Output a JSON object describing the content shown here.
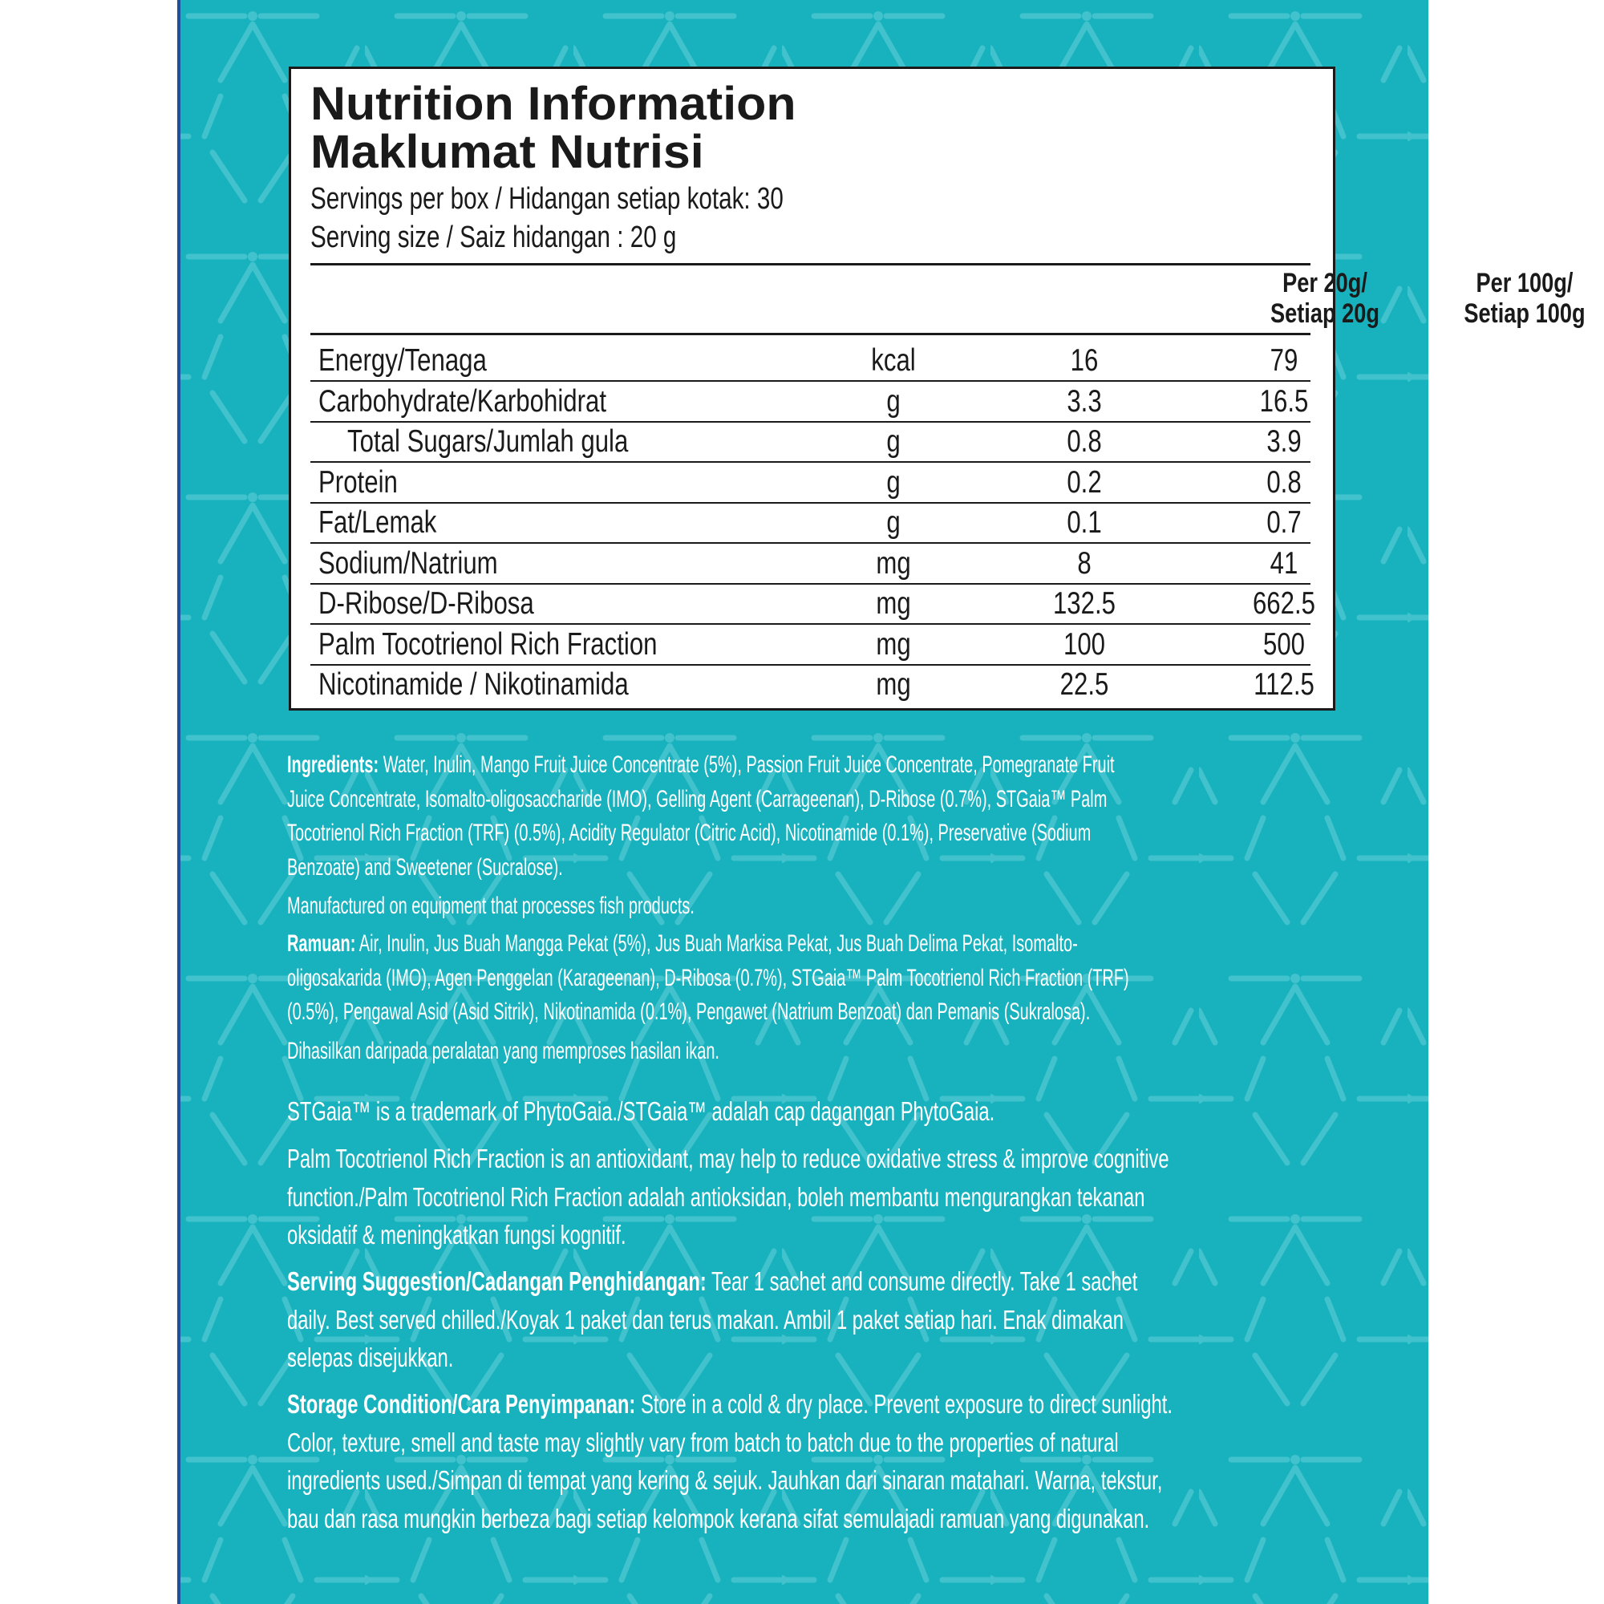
{
  "colors": {
    "background": "#17b2be",
    "pattern": "#4cc6d0",
    "panel_edge": "#1d4f9a",
    "label_border": "#1a1a1a"
  },
  "label": {
    "title_en": "Nutrition Information",
    "title_ms": "Maklumat Nutrisi",
    "servings_per_box": "Servings per box / Hidangan setiap kotak: 30",
    "serving_size": "Serving size / Saiz hidangan : 20 g",
    "col_per20": [
      "Per 20g/",
      "Setiap 20g"
    ],
    "col_per100": [
      "Per 100g/",
      "Setiap 100g"
    ],
    "rows": [
      {
        "name": "Energy/Tenaga",
        "unit": "kcal",
        "per20": "16",
        "per100": "79"
      },
      {
        "name": "Carbohydrate/Karbohidrat",
        "unit": "g",
        "per20": "3.3",
        "per100": "16.5"
      },
      {
        "name": "Total Sugars/Jumlah gula",
        "unit": "g",
        "per20": "0.8",
        "per100": "3.9"
      },
      {
        "name": "Protein",
        "unit": "g",
        "per20": "0.2",
        "per100": "0.8"
      },
      {
        "name": "Fat/Lemak",
        "unit": "g",
        "per20": "0.1",
        "per100": "0.7"
      },
      {
        "name": "Sodium/Natrium",
        "unit": "mg",
        "per20": "8",
        "per100": "41"
      },
      {
        "name": "D-Ribose/D-Ribosa",
        "unit": "mg",
        "per20": "132.5",
        "per100": "662.5"
      },
      {
        "name": "Palm Tocotrienol Rich Fraction",
        "unit": "mg",
        "per20": "100",
        "per100": "500"
      },
      {
        "name": "Nicotinamide / Nikotinamida",
        "unit": "mg",
        "per20": "22.5",
        "per100": "112.5"
      }
    ]
  },
  "ingredients": {
    "label": "Ingredients:",
    "lines": [
      " Water, Inulin, Mango Fruit Juice Concentrate (5%), Passion Fruit Juice Concentrate, Pomegranate Fruit",
      "Juice Concentrate, Isomalto-oligosaccharide (IMO), Gelling Agent (Carrageenan), D-Ribose (0.7%), STGaia™ Palm",
      "Tocotrienol Rich Fraction (TRF) (0.5%), Acidity Regulator (Citric Acid), Nicotinamide (0.1%), Preservative (Sodium",
      "Benzoate) and Sweetener (Sucralose)."
    ],
    "allergen": "Manufactured on equipment that processes fish products."
  },
  "ramuan": {
    "label": "Ramuan:",
    "lines": [
      " Air, Inulin, Jus Buah Mangga Pekat (5%), Jus Buah Markisa Pekat, Jus Buah Delima Pekat, Isomalto-",
      "oligosakarida (IMO), Agen Penggelan (Karageenan), D-Ribosa (0.7%), STGaia™ Palm Tocotrienol Rich Fraction (TRF)",
      "(0.5%), Pengawal Asid (Asid Sitrik), Nikotinamida (0.1%), Pengawet (Natrium Benzoat) dan Pemanis (Sukralosa)."
    ],
    "allergen": "Dihasilkan daripada peralatan yang memproses hasilan ikan."
  },
  "trademark": "STGaia™ is a trademark of PhytoGaia./STGaia™ adalah cap dagangan PhytoGaia.",
  "claim": [
    "Palm Tocotrienol Rich Fraction is an antioxidant, may help to reduce oxidative stress & improve cognitive",
    "function./Palm Tocotrienol Rich Fraction adalah antioksidan, boleh membantu mengurangkan tekanan",
    "oksidatif & meningkatkan fungsi kognitif."
  ],
  "serving": {
    "label": "Serving Suggestion/Cadangan Penghidangan:",
    "lines": [
      " Tear 1 sachet and consume directly. Take 1 sachet",
      "daily. Best served chilled./Koyak 1 paket dan terus makan. Ambil 1 paket setiap hari. Enak dimakan",
      "selepas disejukkan."
    ]
  },
  "storage": {
    "label": "Storage Condition/Cara Penyimpanan:",
    "lines": [
      " Store in a cold & dry place. Prevent exposure to direct sunlight.",
      "Color, texture, smell and taste may slightly vary from batch to batch due to the properties of natural",
      "ingredients used./Simpan di tempat yang kering & sejuk. Jauhkan dari sinaran matahari. Warna, tekstur,",
      "bau dan rasa mungkin berbeza bagi setiap kelompok kerana sifat semulajadi ramuan yang digunakan."
    ]
  }
}
